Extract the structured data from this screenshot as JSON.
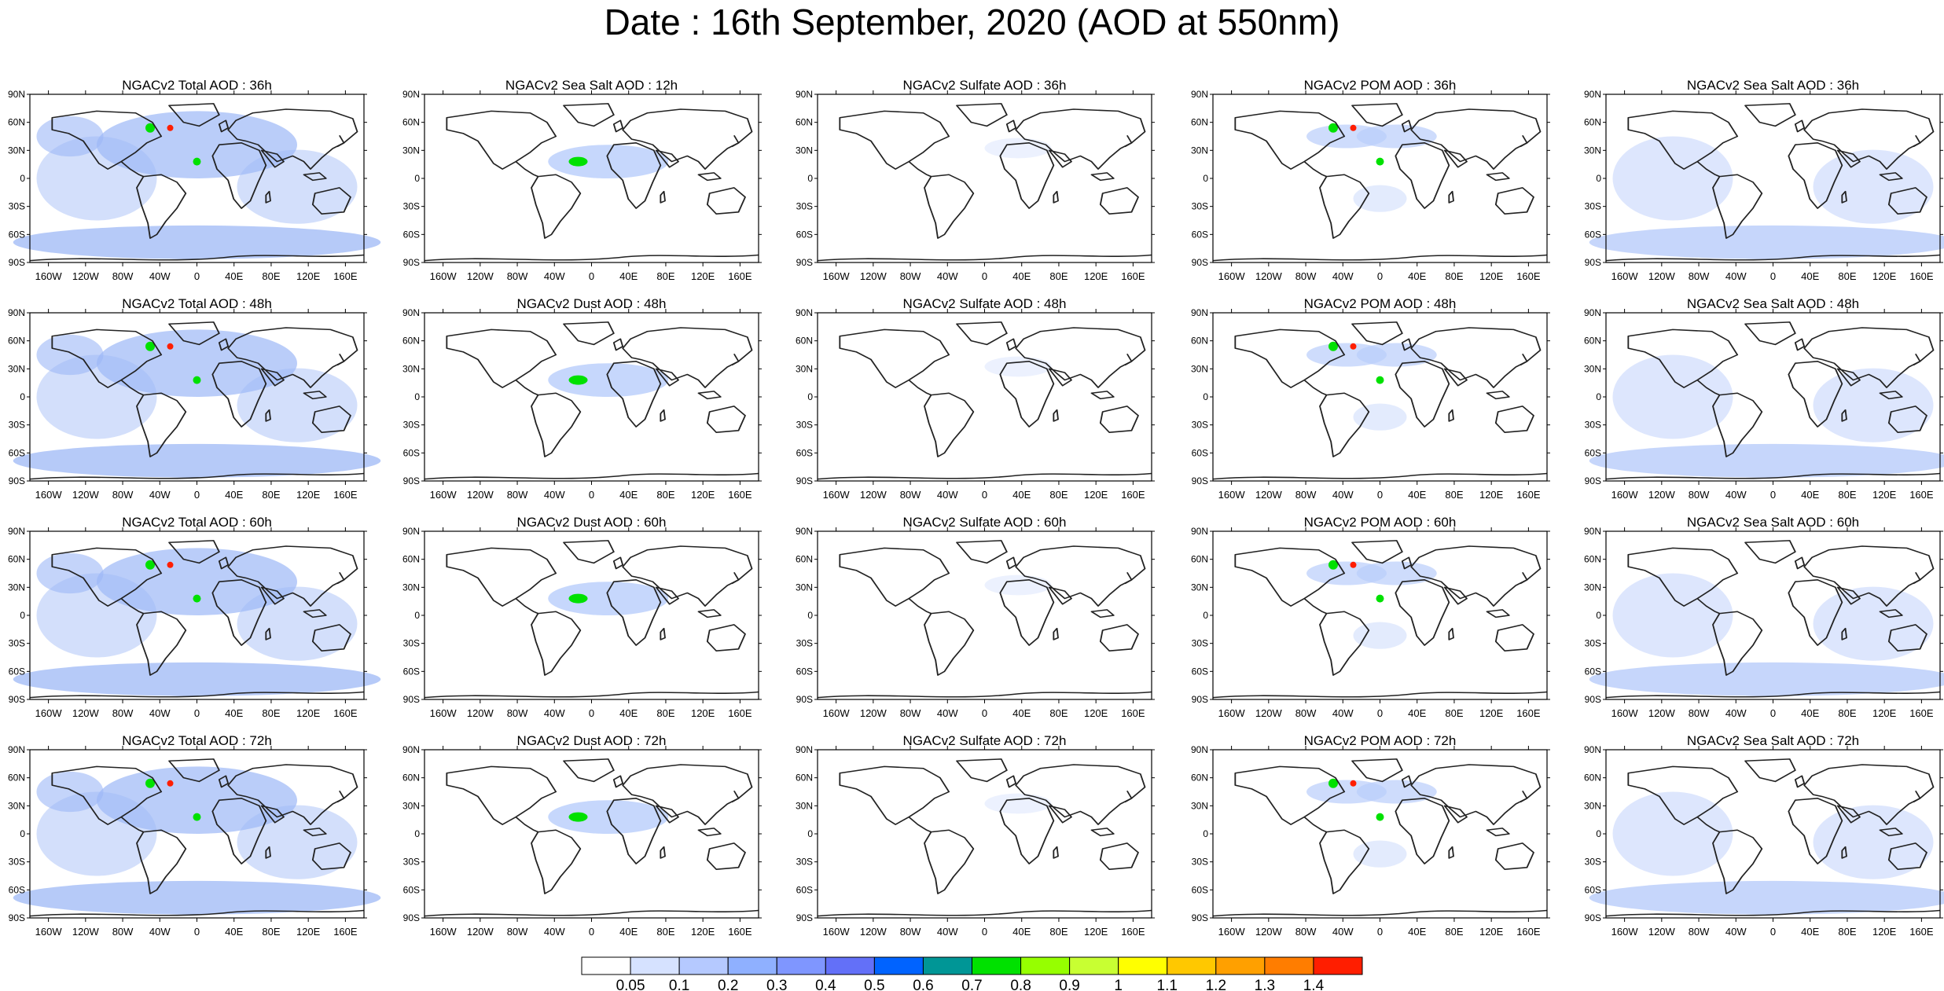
{
  "title": "Date : 16th September, 2020 (AOD at 550nm)",
  "columns": [
    "total",
    "seasalt_or_dust",
    "sulfate",
    "pom",
    "seasalt"
  ],
  "panels": [
    [
      "NGACv2 Total AOD : 36h",
      "NGACv2 Sea Salt  AOD : 12h",
      "NGACv2 Sulfate AOD : 36h",
      "NGACv2 POM AOD : 36h",
      "NGACv2 Sea Salt  AOD : 36h"
    ],
    [
      "NGACv2 Total AOD : 48h",
      "NGACv2 Dust AOD : 48h",
      "NGACv2 Sulfate AOD : 48h",
      "NGACv2 POM AOD : 48h",
      "NGACv2 Sea Salt  AOD : 48h"
    ],
    [
      "NGACv2 Total AOD : 60h",
      "NGACv2 Dust AOD : 60h",
      "NGACv2 Sulfate AOD : 60h",
      "NGACv2 POM AOD : 60h",
      "NGACv2 Sea Salt  AOD : 60h"
    ],
    [
      "NGACv2 Total AOD : 72h",
      "NGACv2 Dust AOD : 72h",
      "NGACv2 Sulfate AOD : 72h",
      "NGACv2 POM AOD : 72h",
      "NGACv2 Sea Salt  AOD : 72h"
    ]
  ],
  "lat_labels": [
    "90N",
    "60N",
    "30N",
    "0",
    "30S",
    "60S",
    "90S"
  ],
  "lon_labels": [
    "160W",
    "120W",
    "80W",
    "40W",
    "0",
    "40E",
    "80E",
    "120E",
    "160E"
  ],
  "lon_values": [
    -160,
    -120,
    -80,
    -40,
    0,
    40,
    80,
    120,
    160
  ],
  "colorbar": {
    "labels": [
      "0.05",
      "0.1",
      "0.2",
      "0.3",
      "0.4",
      "0.5",
      "0.6",
      "0.7",
      "0.8",
      "0.9",
      "1",
      "1.1",
      "1.2",
      "1.3",
      "1.4"
    ],
    "colors": [
      "#ffffff",
      "#d6e2ff",
      "#b5c9ff",
      "#8fb0ff",
      "#7f96ff",
      "#6370f8",
      "#0063ff",
      "#009696",
      "#00e100",
      "#96ff00",
      "#c8ff32",
      "#ffff00",
      "#ffc800",
      "#ffa000",
      "#ff7d00",
      "#ff1e00"
    ]
  }
}
